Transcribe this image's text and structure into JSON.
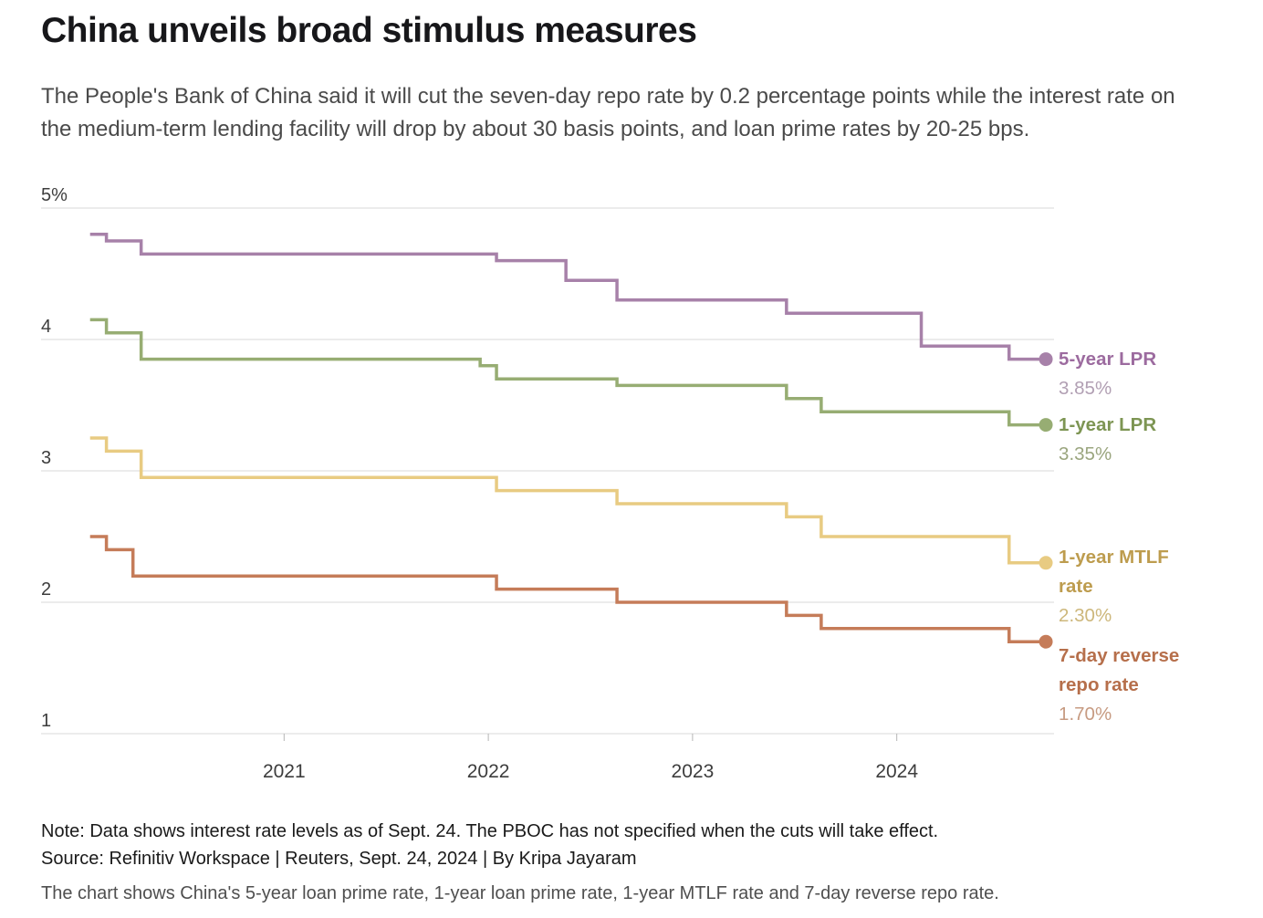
{
  "header": {
    "title": "China unveils broad stimulus measures",
    "subtitle": "The People's Bank of China said it will cut the seven-day repo rate by 0.2 percentage points while the interest rate on the medium-term lending facility will drop by about 30 basis points, and loan prime rates by 20-25 bps."
  },
  "chart_data": {
    "type": "line",
    "step": true,
    "grid": true,
    "units": "percent",
    "xlim": [
      2019.81,
      2024.77
    ],
    "ylim": [
      1,
      5
    ],
    "grid_color": "#d8d8d8",
    "axis_text_color": "#3d3d3d",
    "tick_color": "#b5b5b5",
    "yticks": [
      {
        "value": 5,
        "label": "5%"
      },
      {
        "value": 4,
        "label": "4"
      },
      {
        "value": 3,
        "label": "3"
      },
      {
        "value": 2,
        "label": "2"
      },
      {
        "value": 1,
        "label": "1"
      }
    ],
    "xticks": [
      {
        "value": 2021,
        "label": "2021"
      },
      {
        "value": 2022,
        "label": "2022"
      },
      {
        "value": 2023,
        "label": "2023"
      },
      {
        "value": 2024,
        "label": "2024"
      }
    ],
    "series": [
      {
        "id": "5-year-lpr",
        "name": "5-year LPR",
        "end_value": 3.85,
        "end_value_label": "3.85%",
        "color": "#a781a9",
        "name_color": "#9c6b9f",
        "value_color": "#b19fb3",
        "points": [
          [
            2020.05,
            4.8
          ],
          [
            2020.13,
            4.75
          ],
          [
            2020.3,
            4.65
          ],
          [
            2022.04,
            4.6
          ],
          [
            2022.38,
            4.45
          ],
          [
            2022.63,
            4.3
          ],
          [
            2023.46,
            4.2
          ],
          [
            2024.12,
            3.95
          ],
          [
            2024.55,
            3.85
          ],
          [
            2024.73,
            3.85
          ]
        ]
      },
      {
        "id": "1-year-lpr",
        "name": "1-year LPR",
        "end_value": 3.35,
        "end_value_label": "3.35%",
        "color": "#97ad73",
        "name_color": "#7d9553",
        "value_color": "#9aa57e",
        "points": [
          [
            2020.05,
            4.15
          ],
          [
            2020.13,
            4.05
          ],
          [
            2020.3,
            3.85
          ],
          [
            2021.96,
            3.8
          ],
          [
            2022.04,
            3.7
          ],
          [
            2022.63,
            3.65
          ],
          [
            2023.46,
            3.55
          ],
          [
            2023.63,
            3.45
          ],
          [
            2024.55,
            3.35
          ],
          [
            2024.73,
            3.35
          ]
        ]
      },
      {
        "id": "1-year-mtlf",
        "name": "1-year MTLF rate",
        "end_value": 2.3,
        "end_value_label": "2.30%",
        "color": "#e8cb82",
        "name_color": "#bd9c4e",
        "value_color": "#cdb77b",
        "points": [
          [
            2020.05,
            3.25
          ],
          [
            2020.13,
            3.15
          ],
          [
            2020.3,
            2.95
          ],
          [
            2022.04,
            2.85
          ],
          [
            2022.63,
            2.75
          ],
          [
            2023.46,
            2.65
          ],
          [
            2023.63,
            2.5
          ],
          [
            2024.55,
            2.3
          ],
          [
            2024.73,
            2.3
          ]
        ]
      },
      {
        "id": "7-day-reverse-repo",
        "name": "7-day reverse repo rate",
        "end_value": 1.7,
        "end_value_label": "1.70%",
        "color": "#c57c59",
        "name_color": "#b66f4b",
        "value_color": "#c79b82",
        "points": [
          [
            2020.05,
            2.5
          ],
          [
            2020.13,
            2.4
          ],
          [
            2020.26,
            2.2
          ],
          [
            2022.04,
            2.1
          ],
          [
            2022.63,
            2.0
          ],
          [
            2023.46,
            1.9
          ],
          [
            2023.63,
            1.8
          ],
          [
            2024.55,
            1.7
          ],
          [
            2024.73,
            1.7
          ]
        ]
      }
    ]
  },
  "footer": {
    "note": "Note: Data shows interest rate levels as of Sept. 24. The PBOC has not specified when the cuts will take effect.",
    "source": "Source: Refinitiv Workspace | Reuters, Sept. 24, 2024 | By Kripa Jayaram",
    "caption": "The chart shows China's 5-year loan prime rate, 1-year loan prime rate, 1-year MTLF rate and 7-day reverse repo rate."
  }
}
